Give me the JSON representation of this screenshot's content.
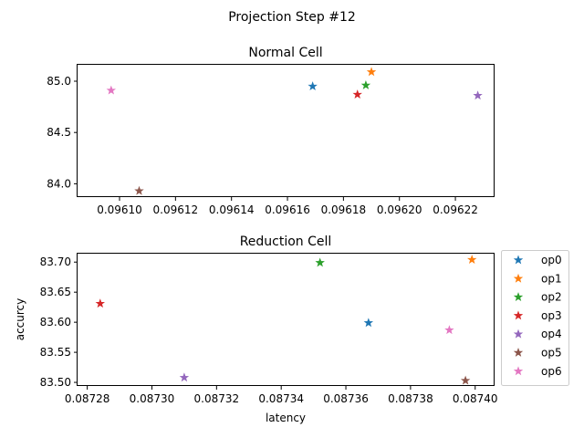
{
  "figure": {
    "suptitle": "Projection Step #12"
  },
  "chart_data": [
    {
      "type": "scatter",
      "title": "Normal Cell",
      "xlabel": "",
      "ylabel": "",
      "xlim": [
        0.096085,
        0.096234
      ],
      "ylim": [
        83.87,
        85.16
      ],
      "xticks": [
        0.0961,
        0.09612,
        0.09614,
        0.09616,
        0.09618,
        0.0962,
        0.09622
      ],
      "xtick_labels": [
        "0.09610",
        "0.09612",
        "0.09614",
        "0.09616",
        "0.09618",
        "0.09620",
        "0.09622"
      ],
      "yticks": [
        84.0,
        84.5,
        85.0
      ],
      "ytick_labels": [
        "84.0",
        "84.5",
        "85.0"
      ],
      "grid": false,
      "series": [
        {
          "name": "op0",
          "color": "#1f77b4",
          "x": [
            0.096169
          ],
          "y": [
            84.95
          ]
        },
        {
          "name": "op1",
          "color": "#ff7f0e",
          "x": [
            0.09619
          ],
          "y": [
            85.09
          ]
        },
        {
          "name": "op2",
          "color": "#2ca02c",
          "x": [
            0.096188
          ],
          "y": [
            84.96
          ]
        },
        {
          "name": "op3",
          "color": "#d62728",
          "x": [
            0.096185
          ],
          "y": [
            84.87
          ]
        },
        {
          "name": "op4",
          "color": "#9467bd",
          "x": [
            0.096228
          ],
          "y": [
            84.86
          ]
        },
        {
          "name": "op5",
          "color": "#8c564b",
          "x": [
            0.096107
          ],
          "y": [
            83.93
          ]
        },
        {
          "name": "op6",
          "color": "#e377c2",
          "x": [
            0.096097
          ],
          "y": [
            84.91
          ]
        }
      ]
    },
    {
      "type": "scatter",
      "title": "Reduction Cell",
      "xlabel": "latency",
      "ylabel": "accurcy",
      "xlim": [
        0.087277,
        0.087406
      ],
      "ylim": [
        83.494,
        83.714
      ],
      "xticks": [
        0.08728,
        0.0873,
        0.08732,
        0.08734,
        0.08736,
        0.08738,
        0.0874
      ],
      "xtick_labels": [
        "0.08728",
        "0.08730",
        "0.08732",
        "0.08734",
        "0.08736",
        "0.08738",
        "0.08740"
      ],
      "yticks": [
        83.5,
        83.55,
        83.6,
        83.65,
        83.7
      ],
      "ytick_labels": [
        "83.50",
        "83.55",
        "83.60",
        "83.65",
        "83.70"
      ],
      "grid": false,
      "legend_position": "outside-right",
      "series": [
        {
          "name": "op0",
          "color": "#1f77b4",
          "x": [
            0.087367
          ],
          "y": [
            83.599
          ]
        },
        {
          "name": "op1",
          "color": "#ff7f0e",
          "x": [
            0.087399
          ],
          "y": [
            83.704
          ]
        },
        {
          "name": "op2",
          "color": "#2ca02c",
          "x": [
            0.087352
          ],
          "y": [
            83.699
          ]
        },
        {
          "name": "op3",
          "color": "#d62728",
          "x": [
            0.087284
          ],
          "y": [
            83.631
          ]
        },
        {
          "name": "op4",
          "color": "#9467bd",
          "x": [
            0.08731
          ],
          "y": [
            83.508
          ]
        },
        {
          "name": "op5",
          "color": "#8c564b",
          "x": [
            0.087397
          ],
          "y": [
            83.503
          ]
        },
        {
          "name": "op6",
          "color": "#e377c2",
          "x": [
            0.087392
          ],
          "y": [
            83.587
          ]
        }
      ]
    }
  ]
}
